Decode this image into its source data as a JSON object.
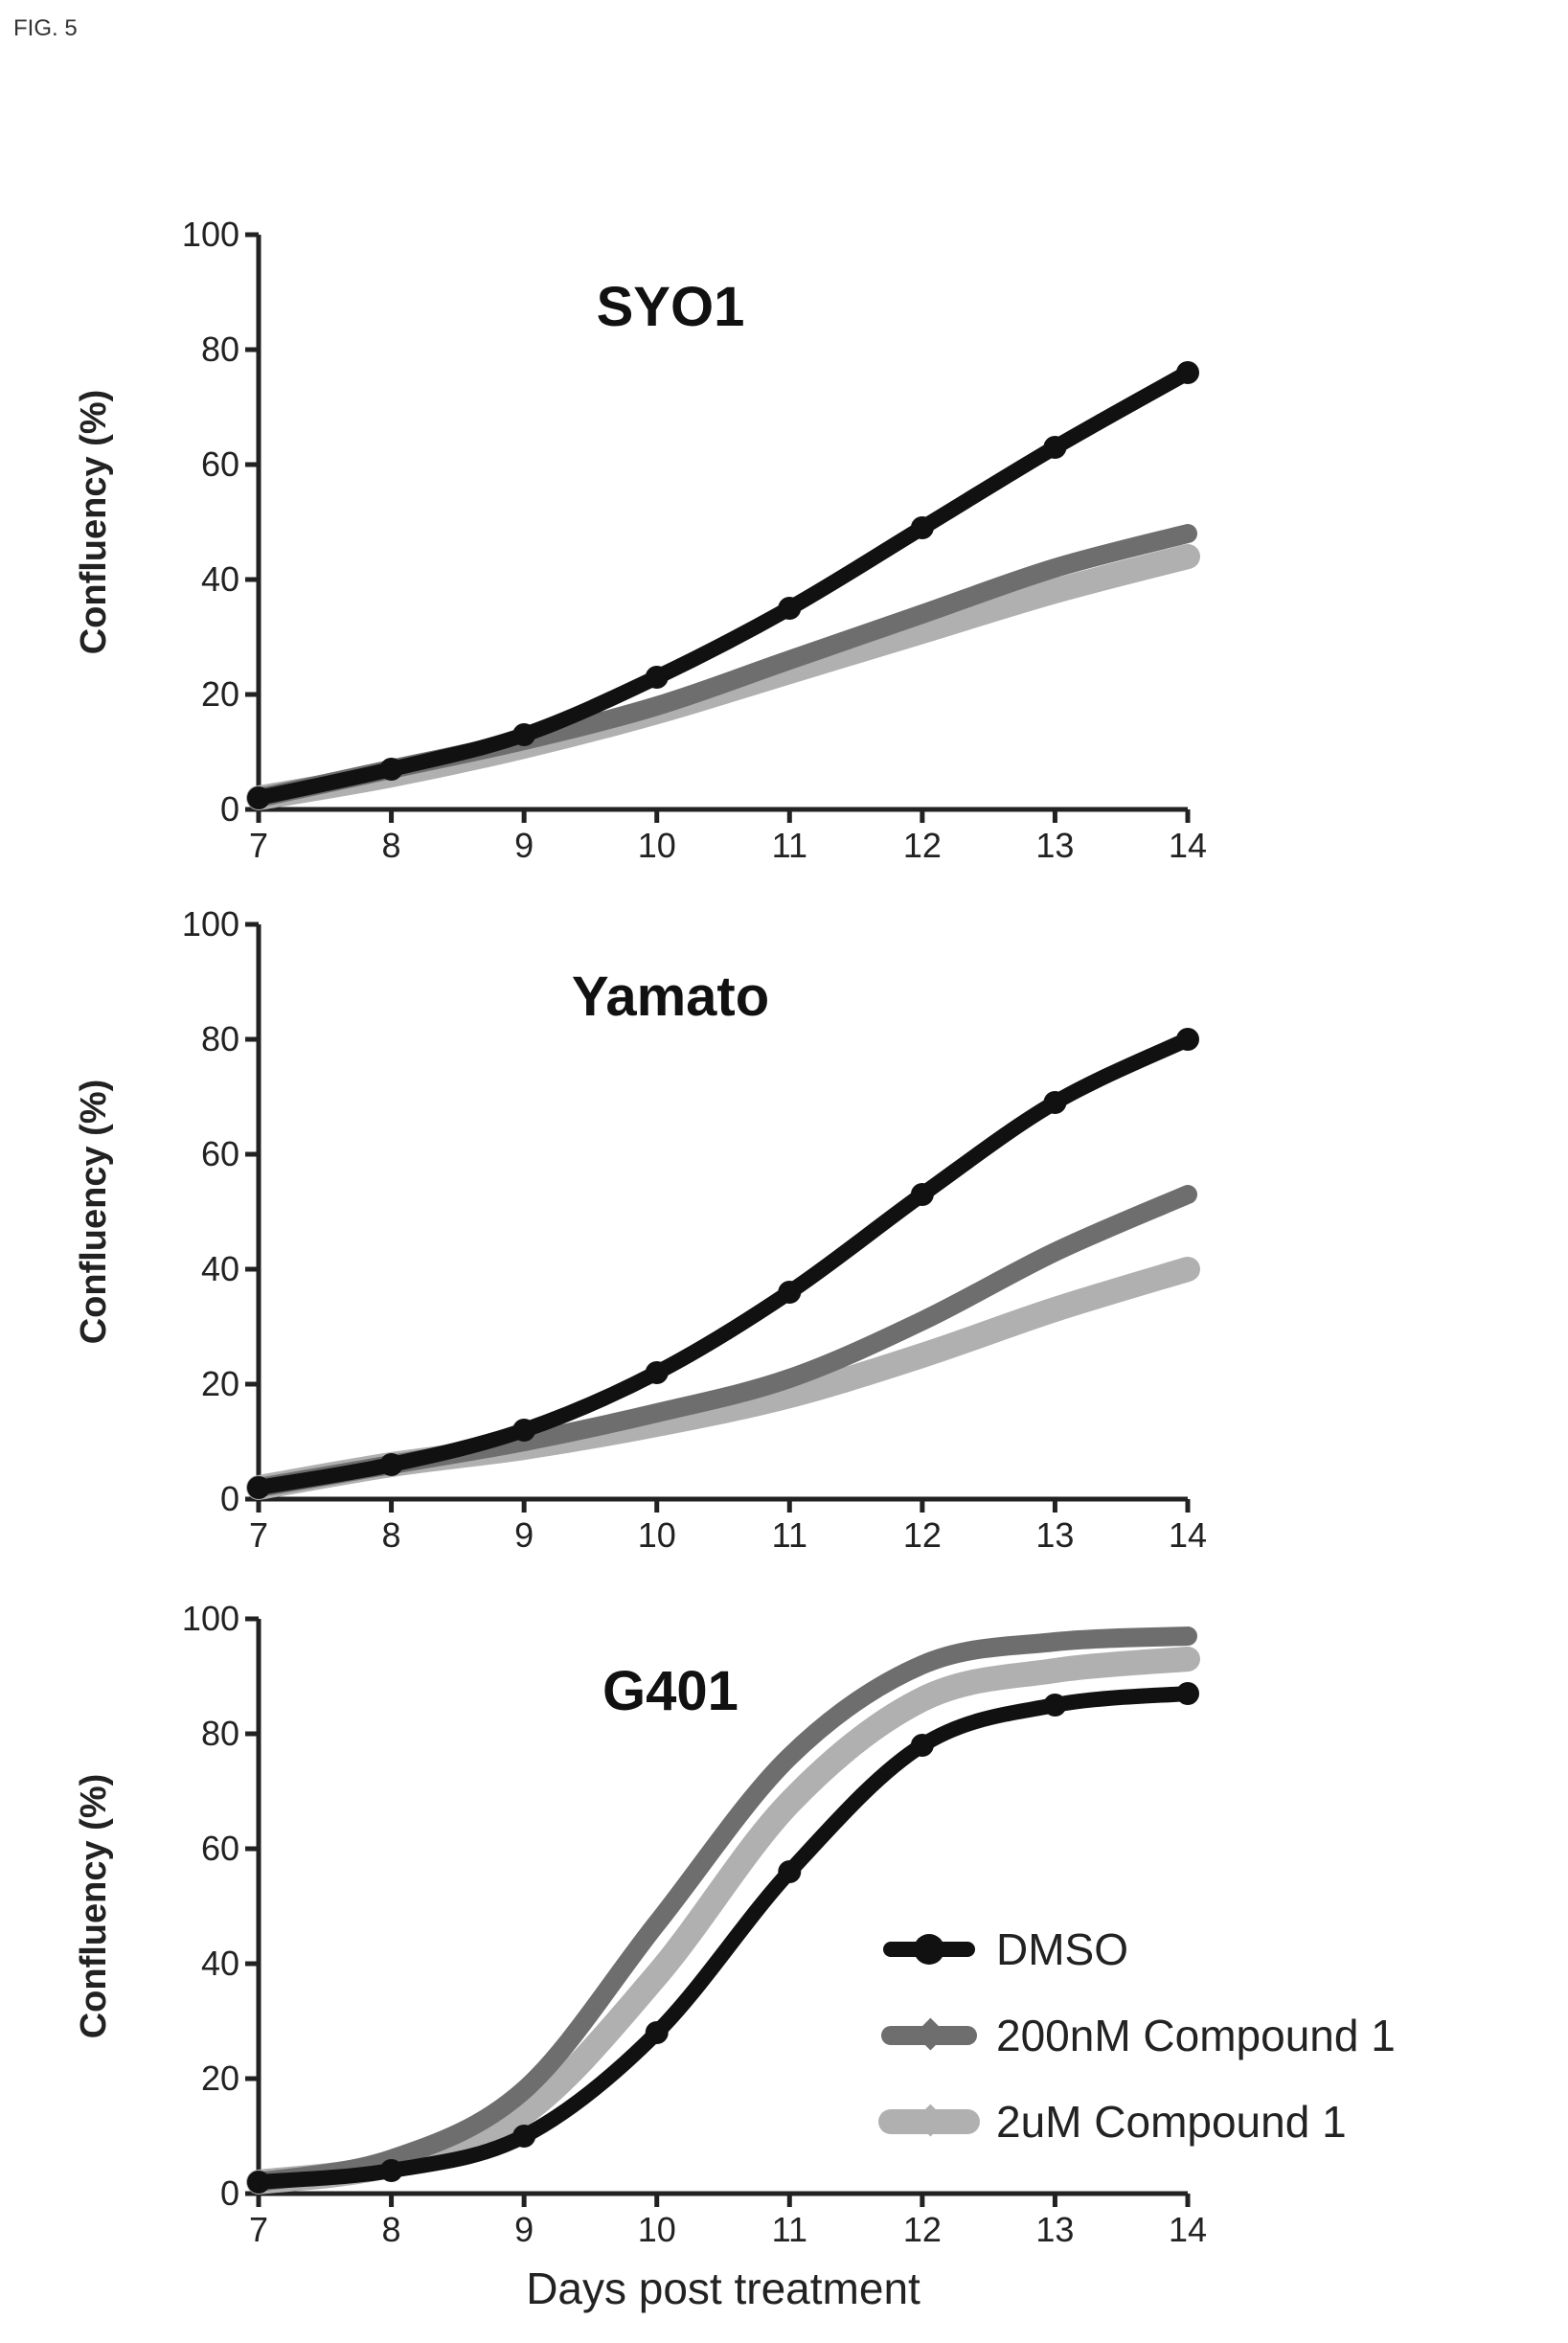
{
  "figure_label": "FIG. 5",
  "colors": {
    "DMSO": "#111111",
    "200nM Compound 1": "#6e6e6e",
    "2uM Compound 1": "#b0b0b0"
  },
  "legend": {
    "placement": "lower-right of bottom panel",
    "entries": [
      "DMSO",
      "200nM Compound 1",
      "2uM Compound 1"
    ]
  },
  "chart_data": [
    {
      "type": "line",
      "title": "SYO1",
      "xlabel": "",
      "ylabel": "Confluency (%)",
      "xlim": [
        7,
        14
      ],
      "ylim": [
        0,
        100
      ],
      "xticks": [
        "7",
        "8",
        "9",
        "10",
        "11",
        "12",
        "13",
        "14"
      ],
      "yticks": [
        "0",
        "20",
        "40",
        "60",
        "80",
        "100"
      ],
      "x": [
        7,
        8,
        9,
        10,
        11,
        12,
        13,
        14
      ],
      "series": [
        {
          "name": "DMSO",
          "values": [
            2,
            7,
            13,
            23,
            35,
            49,
            63,
            76
          ]
        },
        {
          "name": "200nM Compound 1",
          "values": [
            2,
            7,
            12,
            18,
            26,
            34,
            42,
            48
          ]
        },
        {
          "name": "2uM Compound 1",
          "values": [
            2,
            6,
            11,
            17,
            24,
            31,
            38,
            44
          ]
        }
      ]
    },
    {
      "type": "line",
      "title": "Yamato",
      "xlabel": "",
      "ylabel": "Confluency (%)",
      "xlim": [
        7,
        14
      ],
      "ylim": [
        0,
        100
      ],
      "xticks": [
        "7",
        "8",
        "9",
        "10",
        "11",
        "12",
        "13",
        "14"
      ],
      "yticks": [
        "0",
        "20",
        "40",
        "60",
        "80",
        "100"
      ],
      "x": [
        7,
        8,
        9,
        10,
        11,
        12,
        13,
        14
      ],
      "series": [
        {
          "name": "DMSO",
          "values": [
            2,
            6,
            12,
            22,
            36,
            53,
            69,
            80
          ]
        },
        {
          "name": "200nM Compound 1",
          "values": [
            2,
            6,
            10,
            15,
            21,
            31,
            43,
            53
          ]
        },
        {
          "name": "2uM Compound 1",
          "values": [
            2,
            6,
            9,
            13,
            18,
            25,
            33,
            40
          ]
        }
      ]
    },
    {
      "type": "line",
      "title": "G401",
      "xlabel": "Days post treatment",
      "ylabel": "Confluency (%)",
      "xlim": [
        7,
        14
      ],
      "ylim": [
        0,
        100
      ],
      "xticks": [
        "7",
        "8",
        "9",
        "10",
        "11",
        "12",
        "13",
        "14"
      ],
      "yticks": [
        "0",
        "20",
        "40",
        "60",
        "80",
        "100"
      ],
      "x": [
        7,
        8,
        9,
        10,
        11,
        12,
        13,
        14
      ],
      "series": [
        {
          "name": "DMSO",
          "values": [
            2,
            4,
            10,
            28,
            56,
            78,
            85,
            87
          ]
        },
        {
          "name": "200nM Compound 1",
          "values": [
            2,
            6,
            18,
            47,
            76,
            92,
            96,
            97
          ]
        },
        {
          "name": "2uM Compound 1",
          "values": [
            2,
            5,
            14,
            38,
            68,
            86,
            91,
            93
          ]
        }
      ]
    }
  ]
}
